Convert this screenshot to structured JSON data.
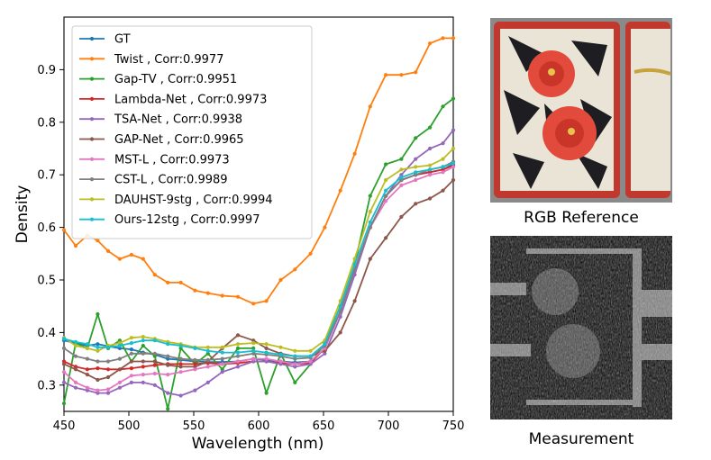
{
  "chart_data": {
    "type": "line",
    "xlabel": "Wavelength (nm)",
    "ylabel": "Density",
    "xlim": [
      450,
      750
    ],
    "ylim": [
      0.25,
      1.0
    ],
    "xticks": [
      450,
      500,
      550,
      600,
      650,
      700,
      750
    ],
    "yticks": [
      0.3,
      0.4,
      0.5,
      0.6,
      0.7,
      0.8,
      0.9
    ],
    "grid": false,
    "legend_position": "top-left",
    "x": [
      450,
      459,
      468,
      476,
      484,
      493,
      502,
      511,
      520,
      530,
      540,
      551,
      561,
      572,
      584,
      596,
      606,
      617,
      628,
      640,
      651,
      663,
      674,
      686,
      698,
      710,
      721,
      732,
      742,
      750
    ],
    "series": [
      {
        "name": "GT",
        "color": "#1f77b4",
        "values": [
          0.385,
          0.38,
          0.375,
          0.378,
          0.374,
          0.37,
          0.368,
          0.362,
          0.358,
          0.35,
          0.348,
          0.345,
          0.344,
          0.344,
          0.345,
          0.35,
          0.348,
          0.345,
          0.343,
          0.345,
          0.37,
          0.44,
          0.52,
          0.6,
          0.66,
          0.69,
          0.7,
          0.705,
          0.71,
          0.72
        ]
      },
      {
        "name": "Twist , Corr:0.9977",
        "color": "#ff7f0e",
        "values": [
          0.595,
          0.565,
          0.585,
          0.575,
          0.555,
          0.54,
          0.548,
          0.54,
          0.51,
          0.495,
          0.495,
          0.48,
          0.475,
          0.47,
          0.468,
          0.455,
          0.46,
          0.5,
          0.52,
          0.55,
          0.6,
          0.67,
          0.74,
          0.83,
          0.89,
          0.89,
          0.895,
          0.95,
          0.96,
          0.96
        ]
      },
      {
        "name": "Gap-TV , Corr:0.9951",
        "color": "#2ca02c",
        "values": [
          0.265,
          0.38,
          0.37,
          0.435,
          0.37,
          0.385,
          0.345,
          0.375,
          0.355,
          0.255,
          0.37,
          0.34,
          0.36,
          0.33,
          0.37,
          0.37,
          0.285,
          0.36,
          0.305,
          0.34,
          0.38,
          0.45,
          0.53,
          0.66,
          0.72,
          0.73,
          0.77,
          0.79,
          0.83,
          0.845
        ]
      },
      {
        "name": "Lambda-Net , Corr:0.9973",
        "color": "#d62728",
        "values": [
          0.345,
          0.335,
          0.33,
          0.332,
          0.33,
          0.33,
          0.332,
          0.335,
          0.338,
          0.34,
          0.34,
          0.34,
          0.342,
          0.34,
          0.342,
          0.345,
          0.345,
          0.342,
          0.34,
          0.342,
          0.37,
          0.44,
          0.52,
          0.6,
          0.66,
          0.69,
          0.7,
          0.705,
          0.71,
          0.718
        ]
      },
      {
        "name": "TSA-Net , Corr:0.9938",
        "color": "#9467bd",
        "values": [
          0.305,
          0.295,
          0.29,
          0.285,
          0.285,
          0.295,
          0.305,
          0.305,
          0.3,
          0.285,
          0.28,
          0.29,
          0.305,
          0.325,
          0.335,
          0.345,
          0.345,
          0.34,
          0.335,
          0.34,
          0.36,
          0.43,
          0.51,
          0.6,
          0.66,
          0.7,
          0.73,
          0.75,
          0.76,
          0.785
        ]
      },
      {
        "name": "GAP-Net , Corr:0.9965",
        "color": "#8c564b",
        "values": [
          0.34,
          0.33,
          0.32,
          0.31,
          0.315,
          0.33,
          0.345,
          0.345,
          0.345,
          0.338,
          0.335,
          0.335,
          0.345,
          0.37,
          0.395,
          0.385,
          0.37,
          0.36,
          0.355,
          0.355,
          0.365,
          0.4,
          0.46,
          0.54,
          0.58,
          0.62,
          0.645,
          0.655,
          0.67,
          0.69
        ]
      },
      {
        "name": "MST-L , Corr:0.9973",
        "color": "#e377c2",
        "values": [
          0.325,
          0.305,
          0.295,
          0.29,
          0.292,
          0.305,
          0.318,
          0.32,
          0.322,
          0.32,
          0.325,
          0.33,
          0.335,
          0.34,
          0.345,
          0.35,
          0.35,
          0.345,
          0.34,
          0.345,
          0.37,
          0.44,
          0.52,
          0.6,
          0.65,
          0.68,
          0.69,
          0.7,
          0.705,
          0.715
        ]
      },
      {
        "name": "CST-L , Corr:0.9989",
        "color": "#7f7f7f",
        "values": [
          0.37,
          0.355,
          0.35,
          0.345,
          0.345,
          0.35,
          0.36,
          0.36,
          0.36,
          0.355,
          0.35,
          0.348,
          0.348,
          0.35,
          0.355,
          0.36,
          0.358,
          0.355,
          0.35,
          0.352,
          0.375,
          0.44,
          0.52,
          0.6,
          0.66,
          0.69,
          0.7,
          0.71,
          0.715,
          0.725
        ]
      },
      {
        "name": "DAUHST-9stg , Corr:0.9994",
        "color": "#bcbd22",
        "values": [
          0.39,
          0.375,
          0.37,
          0.365,
          0.375,
          0.38,
          0.39,
          0.392,
          0.388,
          0.382,
          0.378,
          0.372,
          0.372,
          0.372,
          0.378,
          0.38,
          0.378,
          0.372,
          0.365,
          0.365,
          0.385,
          0.46,
          0.54,
          0.63,
          0.69,
          0.71,
          0.715,
          0.718,
          0.73,
          0.75
        ]
      },
      {
        "name": "Ours-12stg , Corr:0.9997",
        "color": "#17becf",
        "values": [
          0.388,
          0.382,
          0.378,
          0.372,
          0.372,
          0.375,
          0.38,
          0.385,
          0.385,
          0.378,
          0.375,
          0.37,
          0.365,
          0.362,
          0.362,
          0.365,
          0.362,
          0.358,
          0.355,
          0.355,
          0.378,
          0.45,
          0.53,
          0.61,
          0.67,
          0.695,
          0.705,
          0.71,
          0.715,
          0.722
        ]
      }
    ]
  },
  "panels": {
    "rgb_caption": "RGB Reference",
    "measurement_caption": "Measurement"
  }
}
